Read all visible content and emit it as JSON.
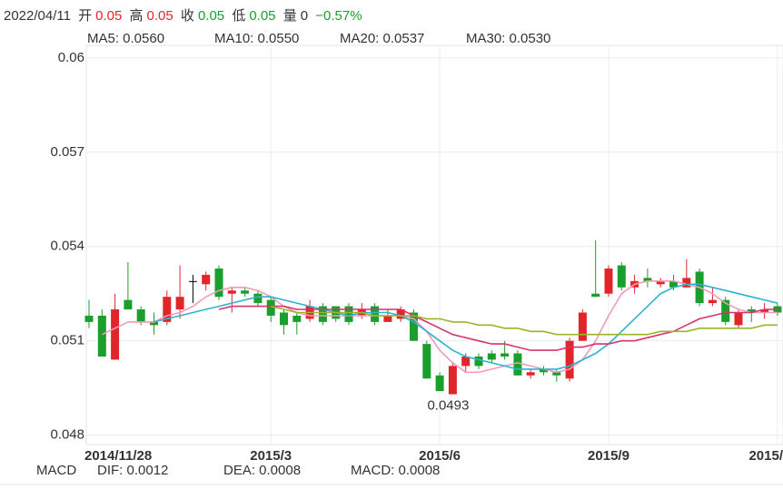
{
  "header": {
    "date": "2022/04/11",
    "items": [
      {
        "label": "开",
        "value": "0.05"
      },
      {
        "label": "高",
        "value": "0.05"
      },
      {
        "label": "收",
        "value": "0.05"
      },
      {
        "label": "低",
        "value": "0.05"
      },
      {
        "label": "量",
        "value": "0"
      }
    ],
    "change": "−0.57%"
  },
  "macd": {
    "title": "MACD",
    "items": [
      {
        "text": "DIF: 0.0012",
        "color": "#4b63d8"
      },
      {
        "text": "DEA: 0.0008",
        "color": "#e040c8"
      },
      {
        "text": "MACD: 0.0008",
        "color": "#b02a2a"
      }
    ]
  },
  "chart_data": {
    "type": "candlestick",
    "categories": [
      "2014/11/28",
      null,
      null,
      null,
      null,
      null,
      null,
      null,
      null,
      null,
      null,
      null,
      null,
      null,
      "2015/3",
      null,
      null,
      null,
      null,
      null,
      null,
      null,
      null,
      null,
      null,
      null,
      null,
      "2015/6",
      null,
      null,
      null,
      null,
      null,
      null,
      null,
      null,
      null,
      null,
      null,
      null,
      "2015/9",
      null,
      null,
      null,
      null,
      null,
      null,
      null,
      null,
      null,
      null,
      null,
      null,
      "2015/"
    ],
    "open": [
      0.0518,
      0.0518,
      0.0504,
      0.0523,
      0.052,
      0.0516,
      0.0516,
      0.052,
      0.0529,
      0.0528,
      0.0533,
      0.0525,
      0.0526,
      0.0525,
      0.0523,
      0.0519,
      0.0518,
      0.0517,
      0.0521,
      0.0521,
      0.0521,
      0.0518,
      0.0521,
      0.0516,
      0.0517,
      0.0519,
      0.0509,
      0.0499,
      0.0493,
      0.0502,
      0.0505,
      0.0506,
      0.0506,
      0.0506,
      0.0499,
      0.0501,
      0.05,
      0.0498,
      0.051,
      0.0525,
      0.0525,
      0.0534,
      0.0527,
      0.053,
      0.0528,
      0.0529,
      0.0527,
      0.0532,
      0.0522,
      0.0523,
      0.0515,
      0.052,
      0.0519,
      0.0521
    ],
    "high": [
      0.0523,
      0.052,
      0.0525,
      0.0535,
      0.0521,
      0.0519,
      0.0526,
      0.0534,
      0.0531,
      0.0532,
      0.0534,
      0.0527,
      0.0527,
      0.0526,
      0.0524,
      0.052,
      0.0519,
      0.0523,
      0.0522,
      0.0521,
      0.0522,
      0.0522,
      0.0522,
      0.052,
      0.0521,
      0.052,
      0.051,
      0.05,
      0.0503,
      0.0506,
      0.0506,
      0.0507,
      0.051,
      0.0507,
      0.0501,
      0.0502,
      0.0501,
      0.0511,
      0.052,
      0.0542,
      0.0534,
      0.0535,
      0.0531,
      0.0533,
      0.053,
      0.0531,
      0.0536,
      0.0533,
      0.0527,
      0.0524,
      0.052,
      0.0521,
      0.0522,
      0.0522
    ],
    "low": [
      0.0514,
      0.0505,
      0.0504,
      0.052,
      0.0515,
      0.0512,
      0.0515,
      0.0517,
      0.0522,
      0.0526,
      0.0523,
      0.0519,
      0.0524,
      0.0521,
      0.0516,
      0.0512,
      0.0512,
      0.0516,
      0.0515,
      0.0516,
      0.0515,
      0.0517,
      0.0515,
      0.0516,
      0.0516,
      0.051,
      0.0498,
      0.0494,
      0.0493,
      0.05,
      0.0501,
      0.0503,
      0.0504,
      0.0499,
      0.0498,
      0.0499,
      0.0497,
      0.0497,
      0.051,
      0.0524,
      0.0524,
      0.0526,
      0.0525,
      0.0527,
      0.0527,
      0.0526,
      0.0527,
      0.0521,
      0.0521,
      0.0515,
      0.0514,
      0.0516,
      0.0517,
      0.0518
    ],
    "close": [
      0.0516,
      0.0505,
      0.052,
      0.052,
      0.0516,
      0.0515,
      0.0524,
      0.0524,
      0.0529,
      0.0531,
      0.0524,
      0.0526,
      0.0525,
      0.0522,
      0.0518,
      0.0515,
      0.0516,
      0.0521,
      0.0516,
      0.0517,
      0.0516,
      0.052,
      0.0516,
      0.0518,
      0.052,
      0.051,
      0.0498,
      0.0494,
      0.0502,
      0.0505,
      0.0502,
      0.0504,
      0.0505,
      0.0499,
      0.05,
      0.05,
      0.0499,
      0.051,
      0.0519,
      0.0524,
      0.0533,
      0.0527,
      0.0529,
      0.0529,
      0.0529,
      0.0527,
      0.053,
      0.0522,
      0.0523,
      0.0516,
      0.0519,
      0.0519,
      0.052,
      0.0519
    ],
    "up_color": "#e0262a",
    "down_color": "#1a9e2c",
    "flat_color": "#000000",
    "series": [
      {
        "name": "MA5: 0.0560",
        "color": "#f29bb8",
        "values": [
          null,
          0.0512,
          0.0514,
          0.0516,
          0.0516,
          0.0516,
          0.0518,
          0.0519,
          0.0521,
          0.0524,
          0.0526,
          0.0527,
          0.0527,
          0.0526,
          0.0524,
          0.0521,
          0.0519,
          0.0518,
          0.0518,
          0.0518,
          0.0518,
          0.0518,
          0.0518,
          0.0518,
          0.0518,
          0.0517,
          0.0513,
          0.0507,
          0.0503,
          0.05,
          0.05,
          0.0501,
          0.0502,
          0.0503,
          0.0502,
          0.0501,
          0.05,
          0.0501,
          0.0504,
          0.051,
          0.0518,
          0.0525,
          0.0528,
          0.0529,
          0.0529,
          0.0529,
          0.0528,
          0.0527,
          0.0525,
          0.0522,
          0.052,
          0.0519,
          0.0519,
          0.0519
        ]
      },
      {
        "name": "MA10: 0.0550",
        "color": "#2ab4d0",
        "values": [
          null,
          null,
          null,
          null,
          null,
          0.0516,
          0.0517,
          0.0518,
          0.0519,
          0.052,
          0.0521,
          0.0522,
          0.0523,
          0.0524,
          0.0524,
          0.0523,
          0.0522,
          0.0521,
          0.052,
          0.0519,
          0.0518,
          0.0519,
          0.0519,
          0.0519,
          0.0518,
          0.0516,
          0.0513,
          0.051,
          0.0507,
          0.0505,
          0.0504,
          0.0503,
          0.0502,
          0.0501,
          0.0501,
          0.0501,
          0.0501,
          0.0502,
          0.0504,
          0.0506,
          0.0509,
          0.0513,
          0.0517,
          0.0521,
          0.0525,
          0.0527,
          0.0528,
          0.0528,
          0.0527,
          0.0526,
          0.0525,
          0.0524,
          0.0523,
          0.0522
        ]
      },
      {
        "name": "MA20: 0.0537",
        "color": "#d6336f",
        "values": [
          null,
          null,
          null,
          null,
          null,
          null,
          null,
          null,
          null,
          null,
          0.052,
          0.0521,
          0.0521,
          0.0521,
          0.0521,
          0.0521,
          0.052,
          0.052,
          0.052,
          0.052,
          0.052,
          0.052,
          0.052,
          0.052,
          0.052,
          0.0518,
          0.0516,
          0.0514,
          0.0512,
          0.0511,
          0.051,
          0.0509,
          0.0509,
          0.0508,
          0.0507,
          0.0507,
          0.0507,
          0.0508,
          0.0508,
          0.0509,
          0.0509,
          0.051,
          0.051,
          0.0511,
          0.0512,
          0.0513,
          0.0515,
          0.0517,
          0.0518,
          0.0519,
          0.0519,
          0.0519,
          0.052,
          0.052
        ]
      },
      {
        "name": "MA30: 0.0530",
        "color": "#9bb528",
        "values": [
          null,
          null,
          null,
          null,
          null,
          null,
          null,
          null,
          null,
          null,
          null,
          null,
          null,
          null,
          0.0521,
          0.052,
          0.0519,
          0.0519,
          0.0519,
          0.0519,
          0.0519,
          0.0519,
          0.0518,
          0.0518,
          0.0518,
          0.0518,
          0.0517,
          0.0517,
          0.0516,
          0.0516,
          0.0515,
          0.0515,
          0.0514,
          0.0514,
          0.0513,
          0.0513,
          0.0512,
          0.0512,
          0.0512,
          0.0512,
          0.0512,
          0.0512,
          0.0512,
          0.0512,
          0.0513,
          0.0513,
          0.0513,
          0.0514,
          0.0514,
          0.0514,
          0.0514,
          0.0514,
          0.0515,
          0.0515
        ]
      }
    ],
    "annotations": [
      {
        "text": "0.0493"
      }
    ],
    "ylim": [
      0.0477,
      0.0604
    ],
    "yticks": [
      0.048,
      0.051,
      0.054,
      0.057,
      0.06
    ],
    "grid": true
  }
}
